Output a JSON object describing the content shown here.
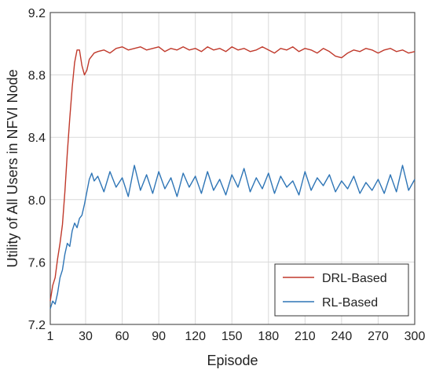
{
  "chart_data": {
    "type": "line",
    "title": "",
    "xlabel": "Episode",
    "ylabel": "Utility of All Users in NFVI Node",
    "xlim": [
      1,
      300
    ],
    "ylim": [
      7.2,
      9.2
    ],
    "x_ticks": [
      1,
      30,
      60,
      90,
      120,
      150,
      180,
      210,
      240,
      270,
      300
    ],
    "x_tick_labels": [
      "1",
      "30",
      "60",
      "90",
      "120",
      "150",
      "180",
      "210",
      "240",
      "270",
      "300"
    ],
    "y_ticks": [
      7.2,
      7.6,
      8.0,
      8.4,
      8.8,
      9.2
    ],
    "y_tick_labels": [
      "7.2",
      "7.6",
      "8.0",
      "8.4",
      "8.8",
      "9.2"
    ],
    "grid": true,
    "legend_position": "bottom-right",
    "series": [
      {
        "name": "DRL-Based",
        "color": "#c0392b",
        "x": [
          1,
          3,
          5,
          7,
          9,
          11,
          13,
          15,
          17,
          19,
          21,
          23,
          25,
          27,
          29,
          31,
          33,
          35,
          37,
          40,
          45,
          50,
          55,
          60,
          65,
          70,
          75,
          80,
          85,
          90,
          95,
          100,
          105,
          110,
          115,
          120,
          125,
          130,
          135,
          140,
          145,
          150,
          155,
          160,
          165,
          170,
          175,
          180,
          185,
          190,
          195,
          200,
          205,
          210,
          215,
          220,
          225,
          230,
          235,
          240,
          245,
          250,
          255,
          260,
          265,
          270,
          275,
          280,
          285,
          290,
          295,
          300
        ],
        "y": [
          7.35,
          7.45,
          7.5,
          7.62,
          7.72,
          7.84,
          8.05,
          8.3,
          8.52,
          8.72,
          8.88,
          8.96,
          8.96,
          8.86,
          8.8,
          8.83,
          8.9,
          8.92,
          8.94,
          8.95,
          8.96,
          8.94,
          8.97,
          8.98,
          8.96,
          8.97,
          8.98,
          8.96,
          8.97,
          8.98,
          8.95,
          8.97,
          8.96,
          8.98,
          8.96,
          8.97,
          8.95,
          8.98,
          8.96,
          8.97,
          8.95,
          8.98,
          8.96,
          8.97,
          8.95,
          8.96,
          8.98,
          8.96,
          8.94,
          8.97,
          8.96,
          8.98,
          8.95,
          8.97,
          8.96,
          8.94,
          8.97,
          8.95,
          8.92,
          8.91,
          8.94,
          8.96,
          8.95,
          8.97,
          8.96,
          8.94,
          8.96,
          8.97,
          8.95,
          8.96,
          8.94,
          8.95
        ]
      },
      {
        "name": "RL-Based",
        "color": "#2e75b6",
        "x": [
          1,
          3,
          5,
          7,
          9,
          11,
          13,
          15,
          17,
          19,
          21,
          23,
          25,
          27,
          29,
          31,
          33,
          35,
          37,
          40,
          45,
          50,
          55,
          60,
          65,
          70,
          75,
          80,
          85,
          90,
          95,
          100,
          105,
          110,
          115,
          120,
          125,
          130,
          135,
          140,
          145,
          150,
          155,
          160,
          165,
          170,
          175,
          180,
          185,
          190,
          195,
          200,
          205,
          210,
          215,
          220,
          225,
          230,
          235,
          240,
          245,
          250,
          255,
          260,
          265,
          270,
          275,
          280,
          285,
          290,
          295,
          300
        ],
        "y": [
          7.3,
          7.35,
          7.33,
          7.4,
          7.5,
          7.55,
          7.65,
          7.72,
          7.7,
          7.8,
          7.85,
          7.82,
          7.88,
          7.9,
          7.97,
          8.05,
          8.13,
          8.17,
          8.12,
          8.15,
          8.05,
          8.18,
          8.08,
          8.14,
          8.02,
          8.22,
          8.06,
          8.16,
          8.04,
          8.18,
          8.07,
          8.14,
          8.02,
          8.17,
          8.08,
          8.15,
          8.04,
          8.18,
          8.06,
          8.13,
          8.03,
          8.16,
          8.08,
          8.2,
          8.05,
          8.14,
          8.07,
          8.17,
          8.04,
          8.15,
          8.08,
          8.12,
          8.03,
          8.18,
          8.06,
          8.14,
          8.09,
          8.16,
          8.05,
          8.12,
          8.07,
          8.15,
          8.04,
          8.11,
          8.06,
          8.13,
          8.04,
          8.16,
          8.05,
          8.22,
          8.06,
          8.13
        ]
      }
    ]
  }
}
